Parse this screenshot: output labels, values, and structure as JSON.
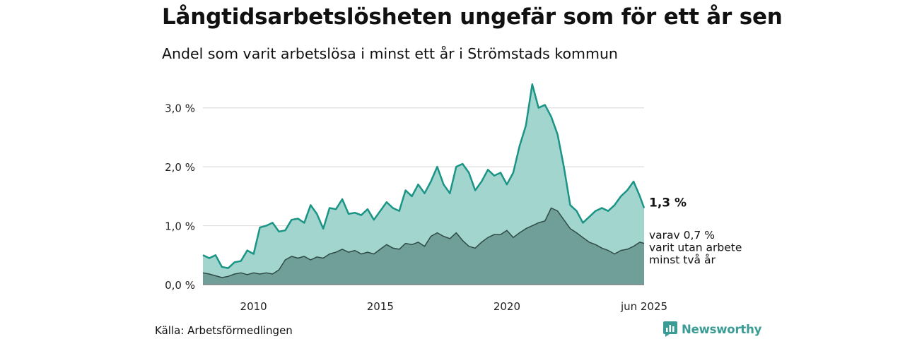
{
  "header": {
    "title": "Långtidsarbetslösheten ungefär som för ett år sen",
    "subtitle": "Andel som varit arbetslösa i minst ett år i Strömstads kommun"
  },
  "footer": {
    "source": "Källa: Arbetsförmedlingen",
    "brand": "Newsworthy",
    "brand_icon": "bar-chart-speech-icon"
  },
  "colors": {
    "total_fill": "#a3d5cf",
    "total_line": "#1a9485",
    "long_fill": "#709e98",
    "long_line": "#2e4b47",
    "grid": "#dddddd",
    "brand": "#3a9c94"
  },
  "chart_data": {
    "type": "area",
    "x_range": [
      "2008-01",
      "2025-06"
    ],
    "ylim": [
      0,
      3.5
    ],
    "y_ticks": [
      {
        "value": 0,
        "label": "0,0 %"
      },
      {
        "value": 1,
        "label": "1,0 %"
      },
      {
        "value": 2,
        "label": "2,0 %"
      },
      {
        "value": 3,
        "label": "3,0 %"
      }
    ],
    "x_ticks": [
      {
        "date": "2010-01",
        "label": "2010"
      },
      {
        "date": "2015-01",
        "label": "2015"
      },
      {
        "date": "2020-01",
        "label": "2020"
      },
      {
        "date": "2025-06",
        "label": "jun 2025"
      }
    ],
    "grid": true,
    "series": [
      {
        "key": "total",
        "end_label": "1,3 %",
        "points": [
          [
            "2008-01",
            0.5
          ],
          [
            "2008-04",
            0.45
          ],
          [
            "2008-07",
            0.5
          ],
          [
            "2008-10",
            0.3
          ],
          [
            "2009-01",
            0.28
          ],
          [
            "2009-04",
            0.38
          ],
          [
            "2009-07",
            0.4
          ],
          [
            "2009-10",
            0.58
          ],
          [
            "2010-01",
            0.52
          ],
          [
            "2010-04",
            0.97
          ],
          [
            "2010-07",
            1.0
          ],
          [
            "2010-10",
            1.05
          ],
          [
            "2011-01",
            0.9
          ],
          [
            "2011-04",
            0.92
          ],
          [
            "2011-07",
            1.1
          ],
          [
            "2011-10",
            1.12
          ],
          [
            "2012-01",
            1.05
          ],
          [
            "2012-04",
            1.35
          ],
          [
            "2012-07",
            1.2
          ],
          [
            "2012-10",
            0.95
          ],
          [
            "2013-01",
            1.3
          ],
          [
            "2013-04",
            1.28
          ],
          [
            "2013-07",
            1.45
          ],
          [
            "2013-10",
            1.2
          ],
          [
            "2014-01",
            1.22
          ],
          [
            "2014-04",
            1.18
          ],
          [
            "2014-07",
            1.28
          ],
          [
            "2014-10",
            1.1
          ],
          [
            "2015-01",
            1.25
          ],
          [
            "2015-04",
            1.4
          ],
          [
            "2015-07",
            1.3
          ],
          [
            "2015-10",
            1.25
          ],
          [
            "2016-01",
            1.6
          ],
          [
            "2016-04",
            1.5
          ],
          [
            "2016-07",
            1.7
          ],
          [
            "2016-10",
            1.55
          ],
          [
            "2017-01",
            1.75
          ],
          [
            "2017-04",
            2.0
          ],
          [
            "2017-07",
            1.7
          ],
          [
            "2017-10",
            1.55
          ],
          [
            "2018-01",
            2.0
          ],
          [
            "2018-04",
            2.05
          ],
          [
            "2018-07",
            1.9
          ],
          [
            "2018-10",
            1.6
          ],
          [
            "2019-01",
            1.75
          ],
          [
            "2019-04",
            1.95
          ],
          [
            "2019-07",
            1.85
          ],
          [
            "2019-10",
            1.9
          ],
          [
            "2020-01",
            1.7
          ],
          [
            "2020-04",
            1.9
          ],
          [
            "2020-07",
            2.35
          ],
          [
            "2020-10",
            2.7
          ],
          [
            "2021-01",
            3.4
          ],
          [
            "2021-04",
            3.0
          ],
          [
            "2021-07",
            3.05
          ],
          [
            "2021-10",
            2.85
          ],
          [
            "2022-01",
            2.55
          ],
          [
            "2022-04",
            2.0
          ],
          [
            "2022-07",
            1.35
          ],
          [
            "2022-10",
            1.25
          ],
          [
            "2023-01",
            1.05
          ],
          [
            "2023-04",
            1.15
          ],
          [
            "2023-07",
            1.25
          ],
          [
            "2023-10",
            1.3
          ],
          [
            "2024-01",
            1.25
          ],
          [
            "2024-04",
            1.35
          ],
          [
            "2024-07",
            1.5
          ],
          [
            "2024-10",
            1.6
          ],
          [
            "2025-01",
            1.75
          ],
          [
            "2025-04",
            1.5
          ],
          [
            "2025-06",
            1.3
          ]
        ]
      },
      {
        "key": "long",
        "end_label": [
          "varav 0,7 %",
          "varit utan arbete",
          "minst två år"
        ],
        "points": [
          [
            "2008-01",
            0.2
          ],
          [
            "2008-04",
            0.18
          ],
          [
            "2008-07",
            0.15
          ],
          [
            "2008-10",
            0.12
          ],
          [
            "2009-01",
            0.14
          ],
          [
            "2009-04",
            0.18
          ],
          [
            "2009-07",
            0.2
          ],
          [
            "2009-10",
            0.17
          ],
          [
            "2010-01",
            0.2
          ],
          [
            "2010-04",
            0.18
          ],
          [
            "2010-07",
            0.2
          ],
          [
            "2010-10",
            0.18
          ],
          [
            "2011-01",
            0.25
          ],
          [
            "2011-04",
            0.42
          ],
          [
            "2011-07",
            0.48
          ],
          [
            "2011-10",
            0.45
          ],
          [
            "2012-01",
            0.48
          ],
          [
            "2012-04",
            0.42
          ],
          [
            "2012-07",
            0.47
          ],
          [
            "2012-10",
            0.45
          ],
          [
            "2013-01",
            0.52
          ],
          [
            "2013-04",
            0.55
          ],
          [
            "2013-07",
            0.6
          ],
          [
            "2013-10",
            0.55
          ],
          [
            "2014-01",
            0.58
          ],
          [
            "2014-04",
            0.52
          ],
          [
            "2014-07",
            0.55
          ],
          [
            "2014-10",
            0.52
          ],
          [
            "2015-01",
            0.6
          ],
          [
            "2015-04",
            0.68
          ],
          [
            "2015-07",
            0.62
          ],
          [
            "2015-10",
            0.6
          ],
          [
            "2016-01",
            0.7
          ],
          [
            "2016-04",
            0.68
          ],
          [
            "2016-07",
            0.72
          ],
          [
            "2016-10",
            0.65
          ],
          [
            "2017-01",
            0.82
          ],
          [
            "2017-04",
            0.88
          ],
          [
            "2017-07",
            0.82
          ],
          [
            "2017-10",
            0.78
          ],
          [
            "2018-01",
            0.88
          ],
          [
            "2018-04",
            0.75
          ],
          [
            "2018-07",
            0.65
          ],
          [
            "2018-10",
            0.62
          ],
          [
            "2019-01",
            0.72
          ],
          [
            "2019-04",
            0.8
          ],
          [
            "2019-07",
            0.85
          ],
          [
            "2019-10",
            0.85
          ],
          [
            "2020-01",
            0.92
          ],
          [
            "2020-04",
            0.8
          ],
          [
            "2020-07",
            0.88
          ],
          [
            "2020-10",
            0.95
          ],
          [
            "2021-01",
            1.0
          ],
          [
            "2021-04",
            1.05
          ],
          [
            "2021-07",
            1.08
          ],
          [
            "2021-10",
            1.3
          ],
          [
            "2022-01",
            1.25
          ],
          [
            "2022-04",
            1.1
          ],
          [
            "2022-07",
            0.95
          ],
          [
            "2022-10",
            0.88
          ],
          [
            "2023-01",
            0.8
          ],
          [
            "2023-04",
            0.72
          ],
          [
            "2023-07",
            0.68
          ],
          [
            "2023-10",
            0.62
          ],
          [
            "2024-01",
            0.58
          ],
          [
            "2024-04",
            0.52
          ],
          [
            "2024-07",
            0.58
          ],
          [
            "2024-10",
            0.6
          ],
          [
            "2025-01",
            0.65
          ],
          [
            "2025-04",
            0.72
          ],
          [
            "2025-06",
            0.7
          ]
        ]
      }
    ]
  }
}
